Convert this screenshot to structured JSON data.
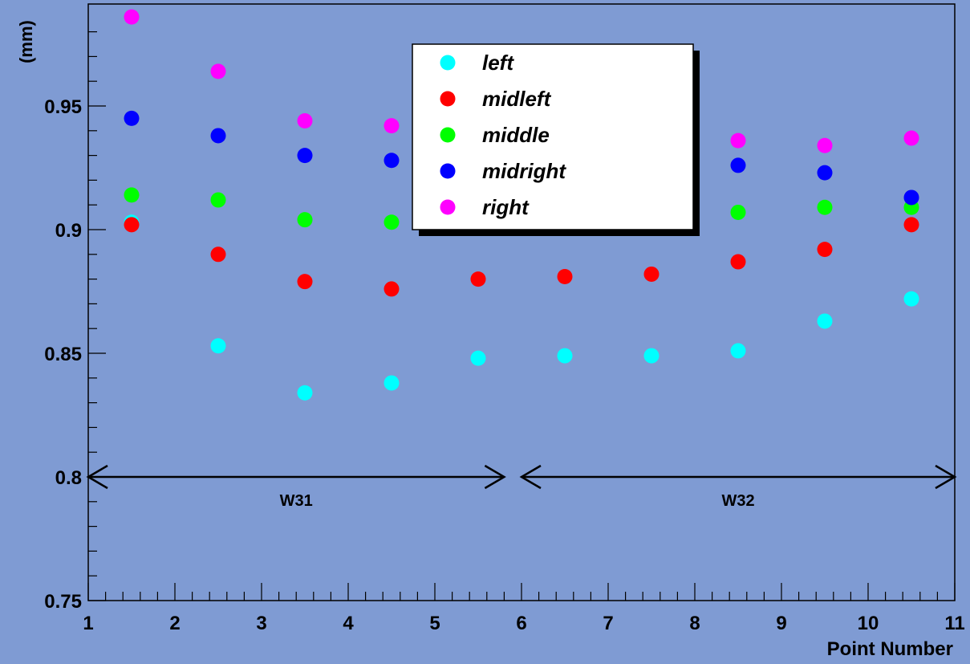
{
  "chart_data": {
    "type": "scatter",
    "title": "",
    "xlabel": "Point Number",
    "ylabel": "(mm)",
    "xlim": [
      1,
      11
    ],
    "ylim": [
      0.75,
      0.985
    ],
    "x_ticks": [
      "1",
      "2",
      "3",
      "4",
      "5",
      "6",
      "7",
      "8",
      "9",
      "10",
      "11"
    ],
    "y_ticks": [
      "0.75",
      "0.8",
      "0.85",
      "0.9",
      "0.95"
    ],
    "grid": false,
    "legend_position": "top-center",
    "x": [
      1.5,
      2.5,
      3.5,
      4.5,
      5.5,
      6.5,
      7.5,
      8.5,
      9.5,
      10.5
    ],
    "series": [
      {
        "name": "left",
        "color": "#00ffff",
        "values": [
          0.903,
          0.853,
          0.834,
          0.838,
          0.848,
          0.849,
          0.849,
          0.851,
          0.863,
          0.872
        ]
      },
      {
        "name": "midleft",
        "color": "#ff0000",
        "values": [
          0.902,
          0.89,
          0.879,
          0.876,
          0.88,
          0.881,
          0.882,
          0.887,
          0.892,
          0.902
        ]
      },
      {
        "name": "middle",
        "color": "#00ff00",
        "values": [
          0.914,
          0.912,
          0.904,
          0.903,
          null,
          null,
          null,
          0.907,
          0.909,
          0.909
        ]
      },
      {
        "name": "midright",
        "color": "#0000ff",
        "values": [
          0.945,
          0.938,
          0.93,
          0.928,
          null,
          null,
          null,
          0.926,
          0.923,
          0.913
        ]
      },
      {
        "name": "right",
        "color": "#ff00ff",
        "values": [
          0.986,
          0.964,
          0.944,
          0.942,
          null,
          null,
          null,
          0.936,
          0.934,
          0.937
        ]
      }
    ],
    "annotations": [
      {
        "text": "W31",
        "x_from": 1,
        "x_to": 5.8,
        "y": 0.8
      },
      {
        "text": "W32",
        "x_from": 6,
        "x_to": 11,
        "y": 0.8
      }
    ]
  }
}
